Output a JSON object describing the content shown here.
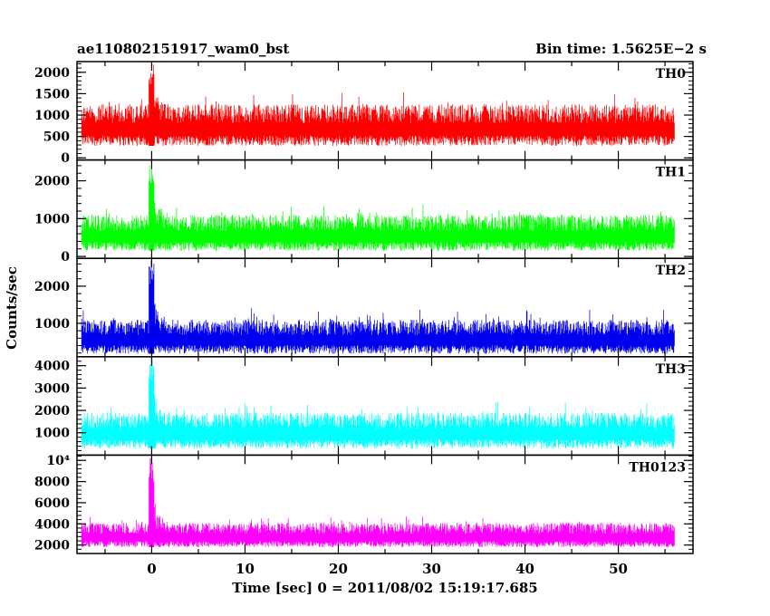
{
  "header": {
    "title": "ae110802151917_wam0_bst",
    "bin_time": "Bin time: 1.5625E−2 s"
  },
  "chart_data": {
    "type": "line",
    "xlabel": "Time [sec] 0 = 2011/08/02 15:19:17.685",
    "ylabel": "Counts/sec",
    "xlim": [
      -8,
      58
    ],
    "x_ticks": [
      0,
      10,
      20,
      30,
      40,
      50
    ],
    "data_x_range": [
      -7.5,
      56
    ],
    "panels": [
      {
        "name": "TH0",
        "color": "#ff0000",
        "ylim": [
          -50,
          2250
        ],
        "y_ticks": [
          0,
          500,
          1000,
          1500,
          2000
        ],
        "y_tick_labels": [
          "0",
          "500",
          "1000",
          "1500",
          "2000"
        ],
        "baseline_low": 280,
        "baseline_high": 1250,
        "spike_max": 2250
      },
      {
        "name": "TH1",
        "color": "#00ff00",
        "ylim": [
          -50,
          2550
        ],
        "y_ticks": [
          0,
          1000,
          2000
        ],
        "y_tick_labels": [
          "0",
          "1000",
          "2000"
        ],
        "baseline_low": 150,
        "baseline_high": 1100,
        "spike_max": 2550
      },
      {
        "name": "TH2",
        "color": "#0000ee",
        "ylim": [
          100,
          2750
        ],
        "y_ticks": [
          1000,
          2000
        ],
        "y_tick_labels": [
          "1000",
          "2000"
        ],
        "baseline_low": 180,
        "baseline_high": 1100,
        "spike_max": 2750
      },
      {
        "name": "TH3",
        "color": "#00ffff",
        "ylim": [
          0,
          4400
        ],
        "y_ticks": [
          1000,
          2000,
          3000,
          4000
        ],
        "y_tick_labels": [
          "1000",
          "2000",
          "3000",
          "4000"
        ],
        "baseline_low": 300,
        "baseline_high": 1900,
        "spike_max": 4400
      },
      {
        "name": "TH0123",
        "color": "#ff00ff",
        "ylim": [
          1200,
          10500
        ],
        "y_ticks": [
          2000,
          4000,
          6000,
          8000,
          10000
        ],
        "y_tick_labels": [
          "2000",
          "4000",
          "6000",
          "8000",
          "10⁴"
        ],
        "baseline_low": 1800,
        "baseline_high": 4100,
        "spike_max": 10500
      }
    ]
  }
}
